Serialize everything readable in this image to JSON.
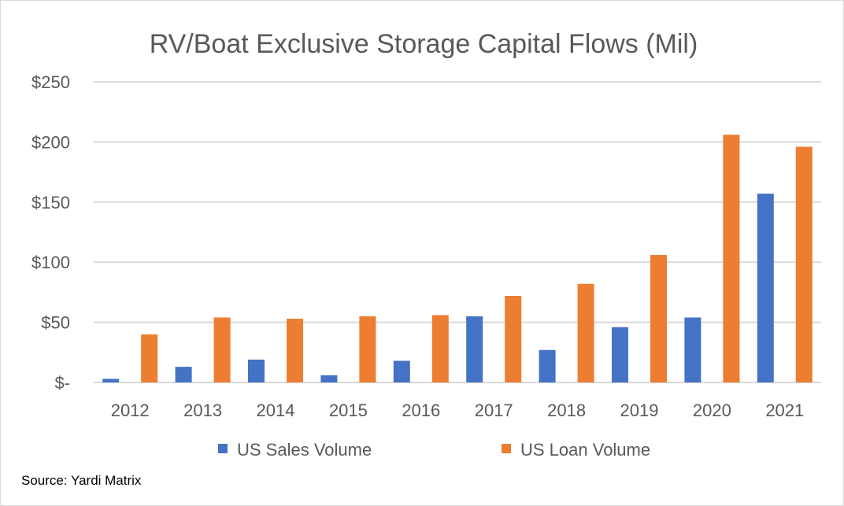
{
  "chart_data": {
    "type": "bar",
    "title": "RV/Boat Exclusive Storage Capital Flows (Mil)",
    "categories": [
      "2012",
      "2013",
      "2014",
      "2015",
      "2016",
      "2017",
      "2018",
      "2019",
      "2020",
      "2021"
    ],
    "series": [
      {
        "name": "US Sales Volume",
        "color": "#4472c4",
        "values": [
          3,
          13,
          19,
          6,
          18,
          55,
          27,
          46,
          54,
          157
        ]
      },
      {
        "name": "US Loan Volume",
        "color": "#ed7d31",
        "values": [
          40,
          54,
          53,
          55,
          56,
          72,
          82,
          106,
          206,
          196
        ]
      }
    ],
    "ylim": [
      0,
      250
    ],
    "yticks": [
      0,
      50,
      100,
      150,
      200,
      250
    ],
    "ytick_labels": [
      "$-",
      "$50",
      "$100",
      "$150",
      "$200",
      "$250"
    ],
    "grid": true,
    "legend_position": "bottom",
    "xlabel": "",
    "ylabel": ""
  },
  "source_note": "Source: Yardi Matrix"
}
